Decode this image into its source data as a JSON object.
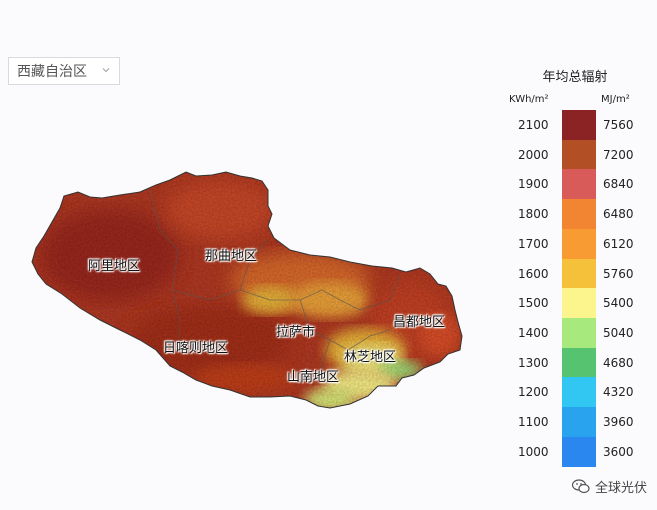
{
  "region_select": {
    "value": "西藏自治区",
    "icon": "chevron-down-icon"
  },
  "map": {
    "labels": [
      {
        "id": "ali",
        "text": "阿里地区"
      },
      {
        "id": "naqu",
        "text": "那曲地区"
      },
      {
        "id": "changdu",
        "text": "昌都地区"
      },
      {
        "id": "lasa",
        "text": "拉萨市"
      },
      {
        "id": "rikaze",
        "text": "日喀则地区"
      },
      {
        "id": "linzhi",
        "text": "林芝地区"
      },
      {
        "id": "shannan",
        "text": "山南地区"
      }
    ]
  },
  "legend": {
    "title": "年均总辐射",
    "unit_left": "KWh/m²",
    "unit_right": "MJ/m²",
    "items": [
      {
        "kwh": "2100",
        "mj": "7560",
        "color": "#8b2324"
      },
      {
        "kwh": "2000",
        "mj": "7200",
        "color": "#b24f25"
      },
      {
        "kwh": "1900",
        "mj": "6840",
        "color": "#d85b59"
      },
      {
        "kwh": "1800",
        "mj": "6480",
        "color": "#f28532"
      },
      {
        "kwh": "1700",
        "mj": "6120",
        "color": "#f89b33"
      },
      {
        "kwh": "1600",
        "mj": "5760",
        "color": "#f6c13a"
      },
      {
        "kwh": "1500",
        "mj": "5400",
        "color": "#fcf58e"
      },
      {
        "kwh": "1400",
        "mj": "5040",
        "color": "#a7e97d"
      },
      {
        "kwh": "1300",
        "mj": "4680",
        "color": "#55c36f"
      },
      {
        "kwh": "1200",
        "mj": "4320",
        "color": "#31c7f2"
      },
      {
        "kwh": "1100",
        "mj": "3960",
        "color": "#2aa3ef"
      },
      {
        "kwh": "1000",
        "mj": "3600",
        "color": "#2b87f0"
      }
    ]
  },
  "watermark": {
    "text": "全球光伏",
    "icon": "wechat-icon"
  }
}
